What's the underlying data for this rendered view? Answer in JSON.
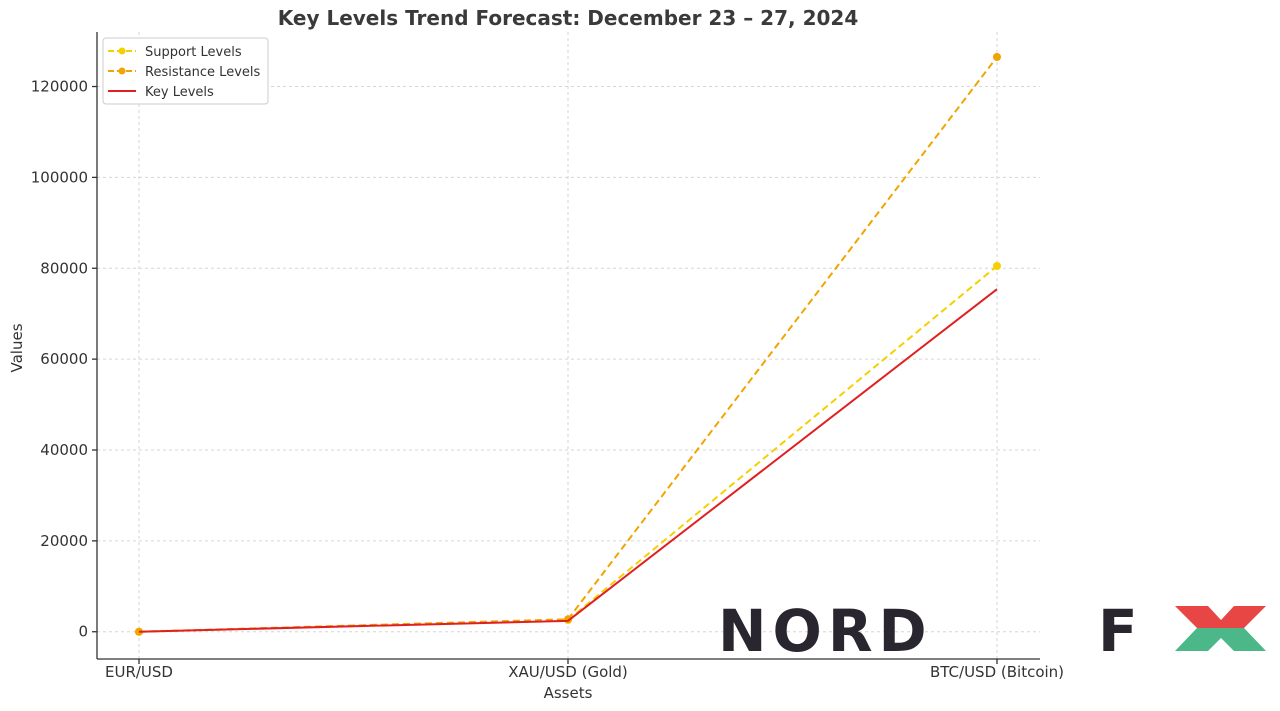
{
  "chart_data": {
    "type": "line",
    "title": "Key Levels Trend Forecast: December 23 – 27, 2024",
    "xlabel": "Assets",
    "ylabel": "Values",
    "categories": [
      "EUR/USD",
      "XAU/USD (Gold)",
      "BTC/USD (Bitcoin)"
    ],
    "ylim": [
      -6000,
      132000
    ],
    "yticks": [
      0,
      20000,
      40000,
      60000,
      80000,
      100000,
      120000
    ],
    "yticks_labels": [
      "0",
      "20000",
      "40000",
      "60000",
      "80000",
      "100000",
      "120000"
    ],
    "grid": true,
    "legend_position": "top-left",
    "series": [
      {
        "name": "Support Levels",
        "values": [
          1.03,
          2580,
          80500
        ],
        "color": "#f5d000",
        "style": "dashed",
        "markers": true
      },
      {
        "name": "Resistance Levels",
        "values": [
          1.07,
          2750,
          126500
        ],
        "color": "#f0a500",
        "style": "dashed",
        "markers": true
      },
      {
        "name": "Key Levels",
        "values": [
          1.05,
          2400,
          75400
        ],
        "color": "#e02020",
        "style": "solid",
        "markers": false
      }
    ]
  },
  "logo": {
    "word": "NORD",
    "letter": "F",
    "x_top_color": "#e84545",
    "x_bottom_color": "#4cb88a"
  }
}
